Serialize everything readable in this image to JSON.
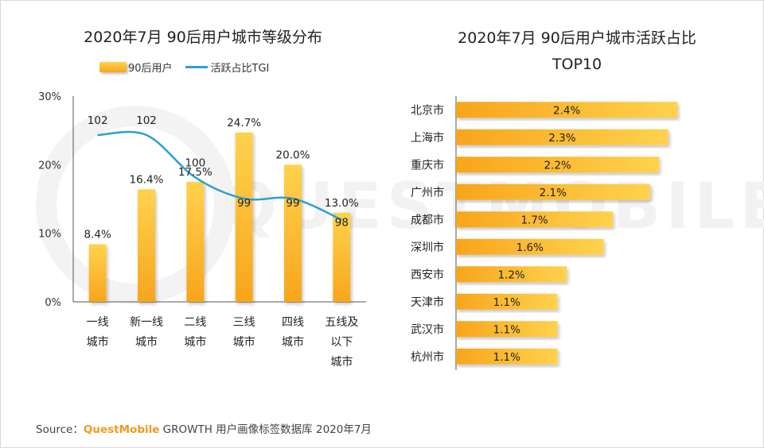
{
  "chart_data": [
    {
      "type": "bar",
      "title": "2020年7月 90后用户城市等级分布",
      "categories": [
        [
          "一线",
          "城市"
        ],
        [
          "新一线",
          "城市"
        ],
        [
          "二线",
          "城市"
        ],
        [
          "三线",
          "城市"
        ],
        [
          "四线",
          "城市"
        ],
        [
          "五线及",
          "以下",
          "城市"
        ]
      ],
      "series": [
        {
          "name": "90后用户",
          "kind": "bar",
          "values": [
            8.4,
            16.4,
            17.5,
            24.7,
            20.0,
            13.0
          ],
          "labels": [
            "8.4%",
            "16.4%",
            "17.5%",
            "24.7%",
            "20.0%",
            "13.0%"
          ]
        },
        {
          "name": "活跃占比TGI",
          "kind": "line",
          "values": [
            102,
            102,
            100,
            99,
            99,
            98
          ],
          "labels": [
            "102",
            "102",
            "100",
            "99",
            "99",
            "98"
          ]
        }
      ],
      "y_ticks": [
        "30%",
        "20%",
        "10%",
        "0%"
      ],
      "ylim": [
        0,
        30
      ],
      "legend_position": "top-left"
    },
    {
      "type": "bar",
      "orientation": "horizontal",
      "title_lines": [
        "2020年7月 90后用户城市活跃占比",
        "TOP10"
      ],
      "categories": [
        "北京市",
        "上海市",
        "重庆市",
        "广州市",
        "成都市",
        "深圳市",
        "西安市",
        "天津市",
        "武汉市",
        "杭州市"
      ],
      "values": [
        2.4,
        2.3,
        2.2,
        2.1,
        1.7,
        1.6,
        1.2,
        1.1,
        1.1,
        1.1
      ],
      "labels": [
        "2.4%",
        "2.3%",
        "2.2%",
        "2.1%",
        "1.7%",
        "1.6%",
        "1.2%",
        "1.1%",
        "1.1%",
        "1.1%"
      ]
    }
  ],
  "legend": {
    "bar_label": "90后用户",
    "line_label": "活跃占比TGI"
  },
  "source": {
    "prefix": "Source：",
    "brand": "QuestMobile",
    "rest": " GROWTH 用户画像标签数据库 2020年7月"
  },
  "watermark": "QUESTMOBILE",
  "colors": {
    "bar_top": "#ffd24d",
    "bar_bottom": "#f8a51c",
    "line": "#2e9fd2"
  }
}
